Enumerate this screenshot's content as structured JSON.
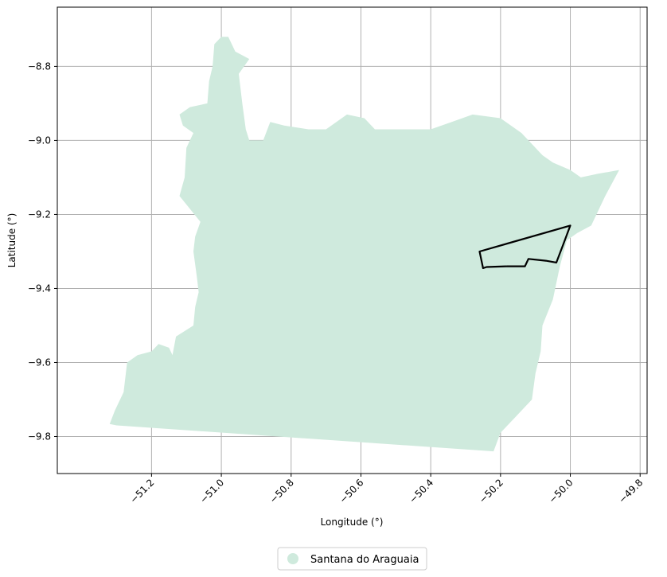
{
  "chart_data": {
    "type": "map",
    "xlabel": "Longitude (°)",
    "ylabel": "Latitude (°)",
    "xlim": [
      -51.47,
      -49.78
    ],
    "ylim": [
      -9.9,
      -8.64
    ],
    "xticks": [
      -51.2,
      -51.0,
      -50.8,
      -50.6,
      -50.4,
      -50.2,
      -50.0,
      -49.8
    ],
    "xtick_labels": [
      "−51.2",
      "−51.0",
      "−50.8",
      "−50.6",
      "−50.4",
      "−50.2",
      "−50.0",
      "−49.8"
    ],
    "yticks": [
      -8.8,
      -9.0,
      -9.2,
      -9.4,
      -9.6,
      -9.8
    ],
    "ytick_labels": [
      "−8.8",
      "−9.0",
      "−9.2",
      "−9.4",
      "−9.6",
      "−9.8"
    ],
    "grid": true,
    "legend": {
      "placement": "bottom-center",
      "entries": [
        {
          "label": "Santana do Araguaia",
          "color": "#cfeadd"
        }
      ]
    },
    "region": {
      "name": "Santana do Araguaia",
      "fill": "#cfeadd",
      "outline": [
        [
          -51.32,
          -9.766
        ],
        [
          -51.305,
          -9.73
        ],
        [
          -51.28,
          -9.68
        ],
        [
          -51.27,
          -9.6
        ],
        [
          -51.24,
          -9.58
        ],
        [
          -51.2,
          -9.57
        ],
        [
          -51.18,
          -9.55
        ],
        [
          -51.15,
          -9.56
        ],
        [
          -51.14,
          -9.58
        ],
        [
          -51.13,
          -9.53
        ],
        [
          -51.08,
          -9.5
        ],
        [
          -51.075,
          -9.45
        ],
        [
          -51.065,
          -9.41
        ],
        [
          -51.07,
          -9.37
        ],
        [
          -51.08,
          -9.3
        ],
        [
          -51.075,
          -9.26
        ],
        [
          -51.06,
          -9.22
        ],
        [
          -51.12,
          -9.15
        ],
        [
          -51.105,
          -9.1
        ],
        [
          -51.1,
          -9.02
        ],
        [
          -51.08,
          -8.98
        ],
        [
          -51.11,
          -8.96
        ],
        [
          -51.12,
          -8.93
        ],
        [
          -51.09,
          -8.91
        ],
        [
          -51.04,
          -8.9
        ],
        [
          -51.035,
          -8.84
        ],
        [
          -51.025,
          -8.8
        ],
        [
          -51.02,
          -8.74
        ],
        [
          -51.0,
          -8.72
        ],
        [
          -50.98,
          -8.72
        ],
        [
          -50.96,
          -8.76
        ],
        [
          -50.92,
          -8.78
        ],
        [
          -50.95,
          -8.82
        ],
        [
          -50.94,
          -8.9
        ],
        [
          -50.93,
          -8.97
        ],
        [
          -50.92,
          -9.0
        ],
        [
          -50.88,
          -9.0
        ],
        [
          -50.86,
          -8.95
        ],
        [
          -50.82,
          -8.96
        ],
        [
          -50.75,
          -8.97
        ],
        [
          -50.7,
          -8.97
        ],
        [
          -50.64,
          -8.93
        ],
        [
          -50.59,
          -8.94
        ],
        [
          -50.56,
          -8.97
        ],
        [
          -50.5,
          -8.97
        ],
        [
          -50.4,
          -8.97
        ],
        [
          -50.34,
          -8.95
        ],
        [
          -50.28,
          -8.93
        ],
        [
          -50.2,
          -8.94
        ],
        [
          -50.14,
          -8.98
        ],
        [
          -50.08,
          -9.04
        ],
        [
          -50.05,
          -9.06
        ],
        [
          -50.0,
          -9.08
        ],
        [
          -49.97,
          -9.1
        ],
        [
          -49.92,
          -9.09
        ],
        [
          -49.86,
          -9.08
        ],
        [
          -49.9,
          -9.15
        ],
        [
          -49.94,
          -9.23
        ],
        [
          -49.98,
          -9.25
        ],
        [
          -50.01,
          -9.27
        ],
        [
          -50.03,
          -9.34
        ],
        [
          -50.05,
          -9.43
        ],
        [
          -50.08,
          -9.5
        ],
        [
          -50.085,
          -9.57
        ],
        [
          -50.1,
          -9.63
        ],
        [
          -50.11,
          -9.7
        ],
        [
          -50.16,
          -9.75
        ],
        [
          -50.2,
          -9.79
        ],
        [
          -50.22,
          -9.84
        ],
        [
          -51.3,
          -9.77
        ]
      ]
    },
    "highlight": {
      "stroke": "#000000",
      "outline": [
        [
          -50.26,
          -9.3
        ],
        [
          -50.0,
          -9.23
        ],
        [
          -50.02,
          -9.28
        ],
        [
          -50.04,
          -9.33
        ],
        [
          -50.07,
          -9.325
        ],
        [
          -50.12,
          -9.32
        ],
        [
          -50.13,
          -9.34
        ],
        [
          -50.18,
          -9.34
        ],
        [
          -50.24,
          -9.342
        ],
        [
          -50.25,
          -9.345
        ]
      ]
    }
  }
}
